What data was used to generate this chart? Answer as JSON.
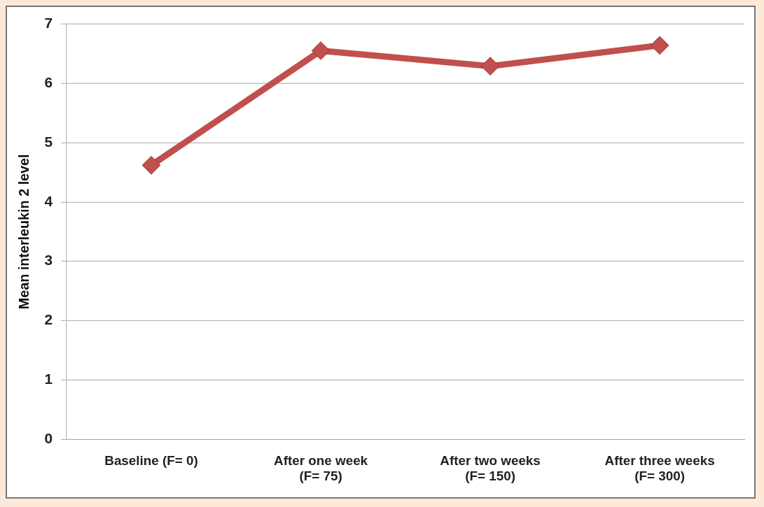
{
  "chart_data": {
    "type": "line",
    "ylabel": "Mean interleukin 2 level",
    "categories": [
      "Baseline (F= 0)",
      "After one week\n(F= 75)",
      "After two weeks\n(F= 150)",
      "After three weeks\n(F= 300)"
    ],
    "series": [
      {
        "color": "#c0504d",
        "values": [
          4.62,
          6.55,
          6.29,
          6.64
        ]
      }
    ],
    "ylim": [
      0,
      7
    ],
    "yticks": [
      0,
      1,
      2,
      3,
      4,
      5,
      6,
      7
    ],
    "grid": "y",
    "legend": false,
    "marker": "diamond",
    "line_style": "solid"
  }
}
